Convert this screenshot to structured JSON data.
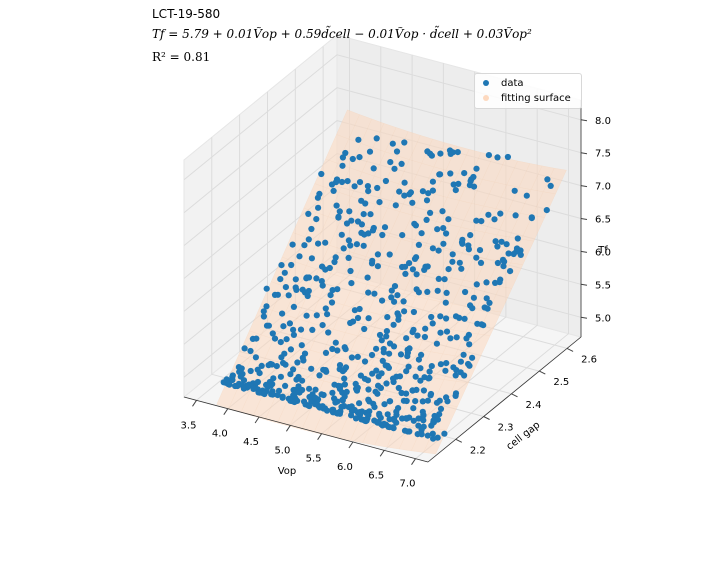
{
  "titles": {
    "line1": "LCT-19-580",
    "line2": "Tf = 5.79 + 0.01Ṽop + 0.59d̃cell − 0.01Ṽop · d̃cell + 0.03Ṽop²",
    "line3": "R² = 0.81"
  },
  "colors": {
    "data": "#1f77b4",
    "surface": "#fdd9bf",
    "pane": "#f2f2f2",
    "grid": "#e0e0e0"
  },
  "chart_data": {
    "type": "scatter",
    "projection": "3d",
    "xlabel": "Vop",
    "ylabel": "cell gap",
    "zlabel": "Tf",
    "xlim": [
      3.3,
      7.2
    ],
    "ylim": [
      2.1,
      2.65
    ],
    "zlim": [
      4.7,
      8.3
    ],
    "xticks": [
      3.5,
      4.0,
      4.5,
      5.0,
      5.5,
      6.0,
      6.5,
      7.0
    ],
    "yticks": [
      2.2,
      2.3,
      2.4,
      2.5,
      2.6
    ],
    "zticks": [
      5.0,
      5.5,
      6.0,
      6.5,
      7.0,
      7.5,
      8.0
    ],
    "xtick_labels": [
      "3.5",
      "4.0",
      "4.5",
      "5.0",
      "5.5",
      "6.0",
      "6.5",
      "7.0"
    ],
    "ytick_labels": [
      "2.2",
      "2.3",
      "2.4",
      "2.5",
      "2.6"
    ],
    "ztick_labels": [
      "5.0",
      "5.5",
      "6.0",
      "6.5",
      "7.0",
      "7.5",
      "8.0"
    ],
    "model": {
      "intercept": 5.79,
      "b_vop": 0.01,
      "b_d": 0.59,
      "b_vop_d": -0.01,
      "b_vop2": 0.03
    },
    "series": [
      {
        "name": "data",
        "kind": "scatter",
        "count": 640
      },
      {
        "name": "fitting surface",
        "kind": "surface"
      }
    ],
    "legend": {
      "position": "top-right",
      "entries": [
        "data",
        "fitting surface"
      ]
    },
    "grid": true
  }
}
